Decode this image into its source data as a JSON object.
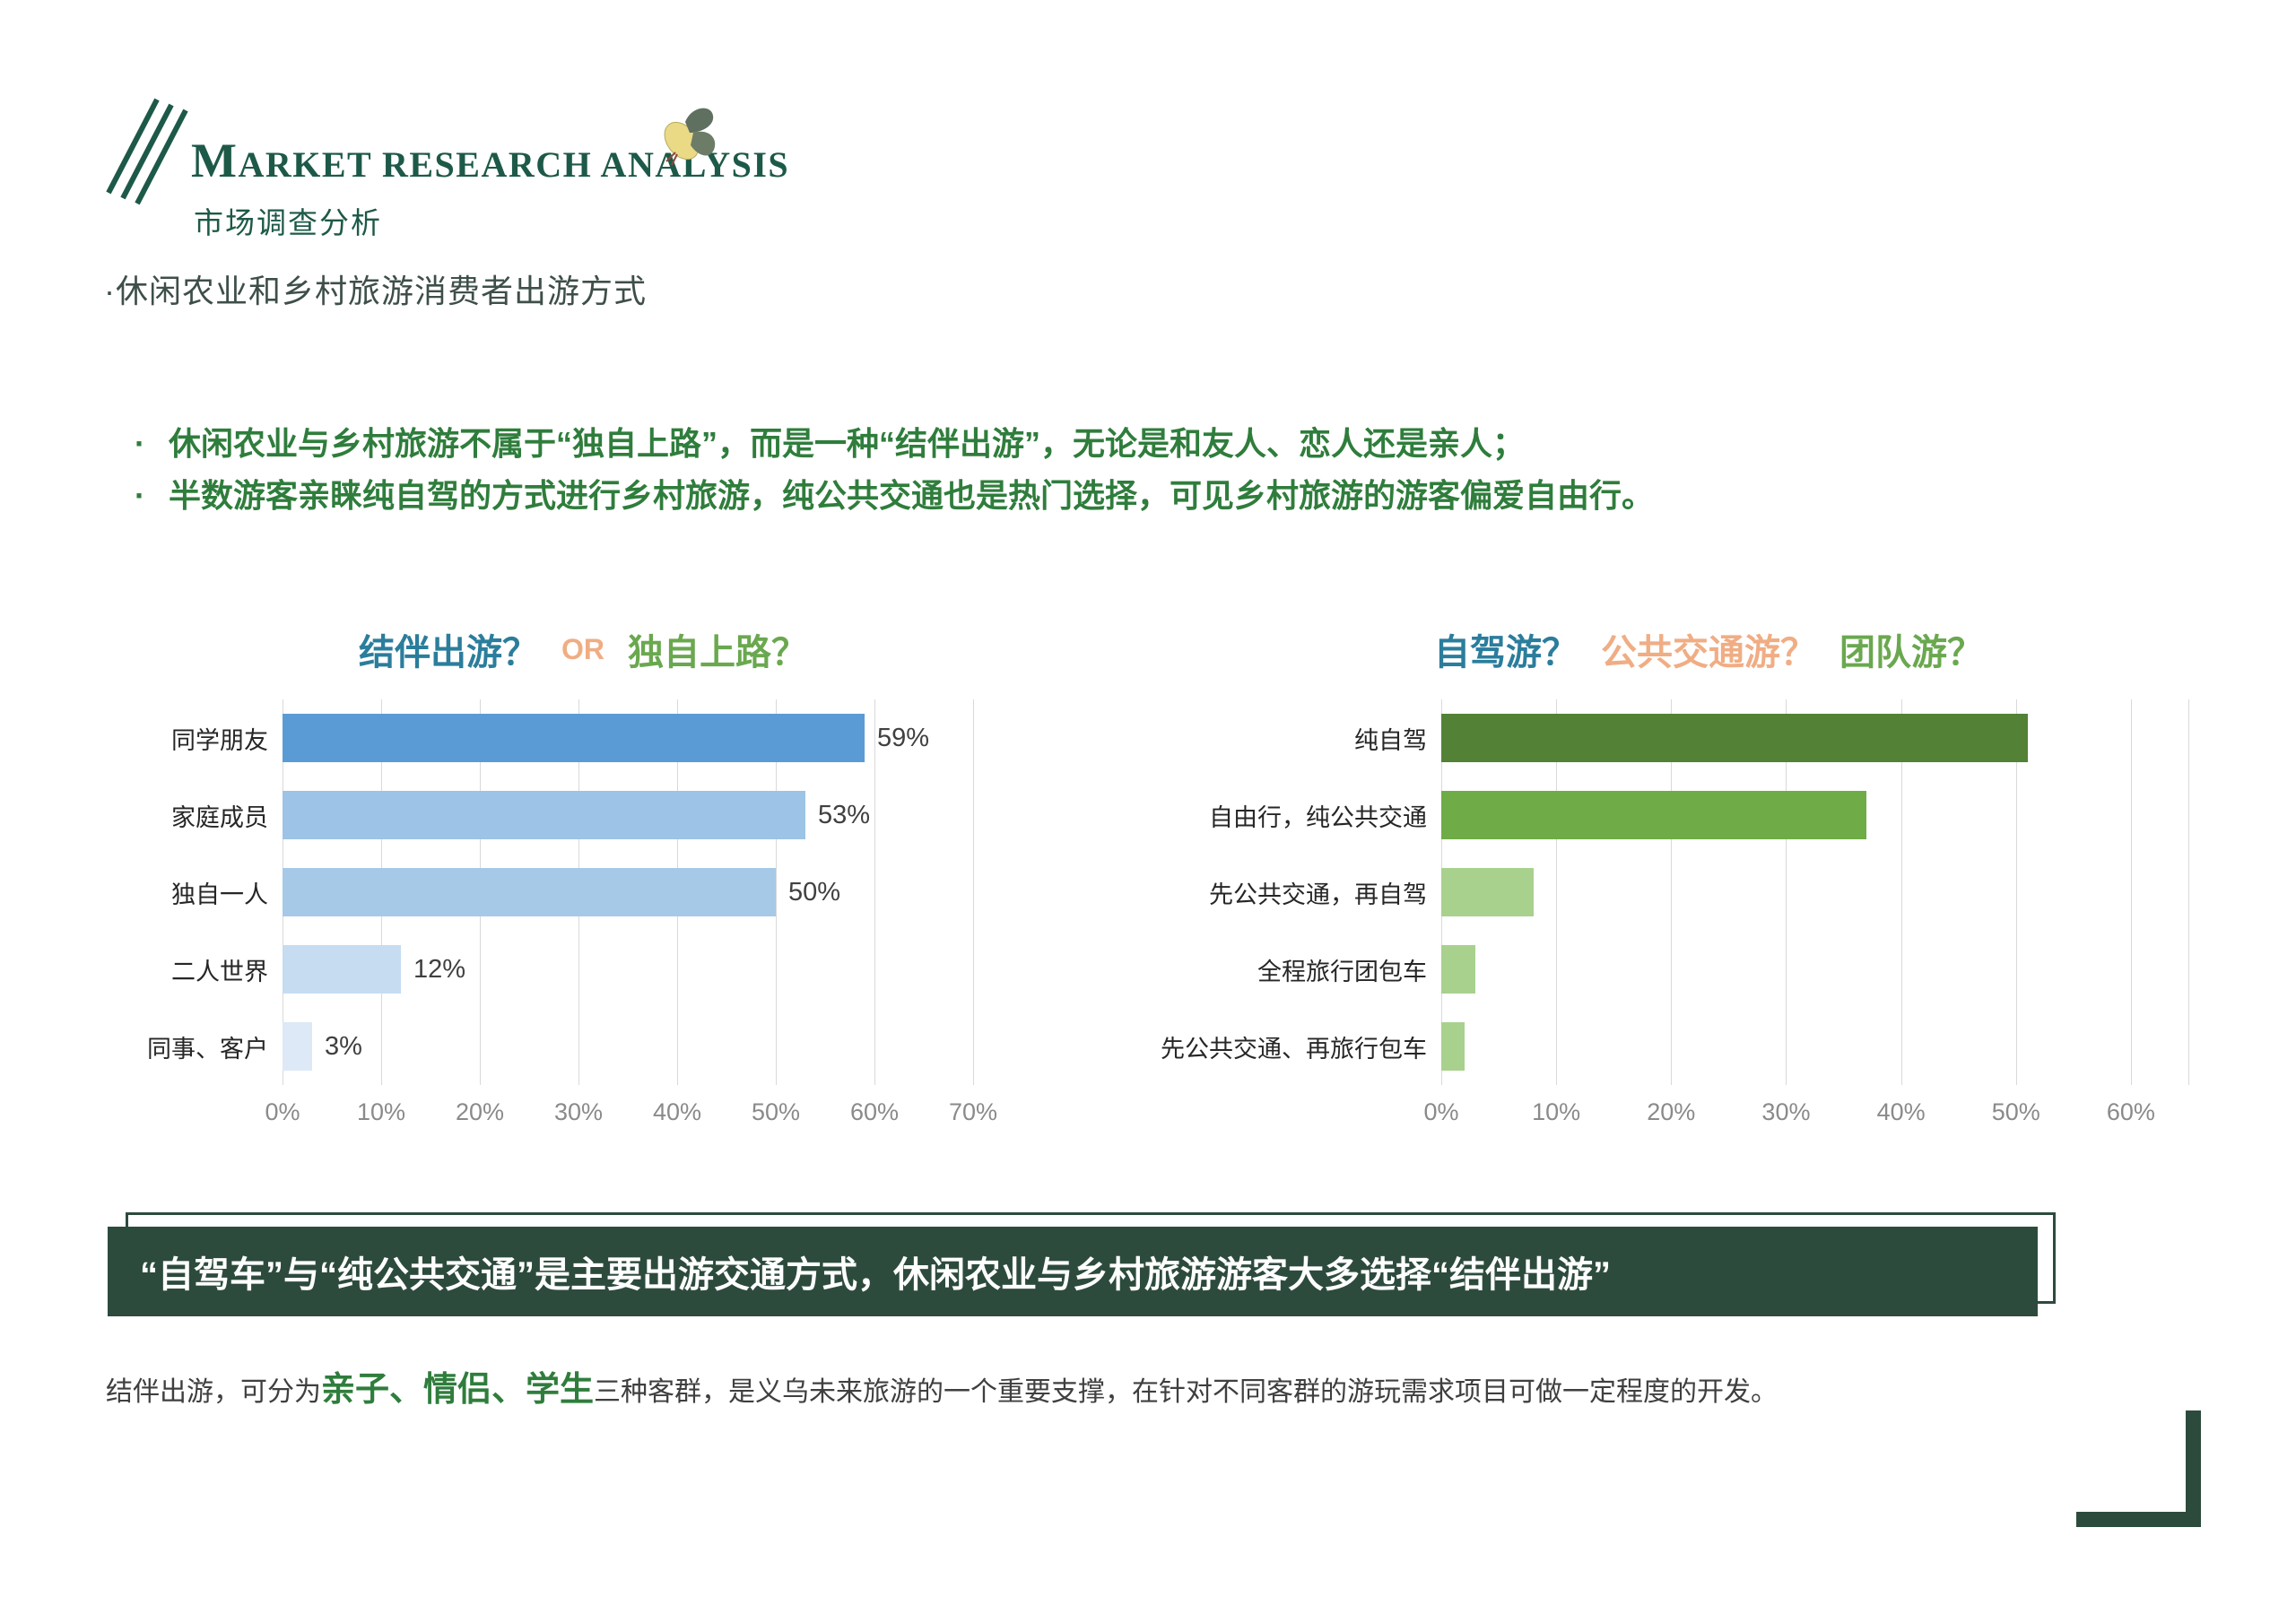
{
  "slide": {
    "background": "#ffffff",
    "accent_dark_green": "#1d5948",
    "banner_green": "#2d4b3d",
    "bullet_green": "#2f7d3c"
  },
  "header": {
    "logo_icon": "triple-diagonal-lines",
    "title_initial": "M",
    "title_rest": "ARKET RESEARCH ANALYSIS",
    "butterfly_icon": "butterfly",
    "subtitle": "市场调查分析"
  },
  "section": {
    "heading": "·休闲农业和乡村旅游消费者出游方式"
  },
  "bullets": {
    "marker": "·",
    "items": [
      "休闲农业与乡村旅游不属于“独自上路”，而是一种“结伴出游”，无论是和友人、恋人还是亲人；",
      "半数游客亲睐纯自驾的方式进行乡村旅游，纯公共交通也是热门选择，可见乡村旅游的游客偏爱自由行。"
    ]
  },
  "chart_data": [
    {
      "type": "bar",
      "orientation": "horizontal",
      "title_parts": [
        {
          "text": "结伴出游？",
          "color": "#2b7d9c",
          "small": false
        },
        {
          "text": "OR",
          "color": "#f0ad84",
          "small": true
        },
        {
          "text": "独自上路？",
          "color": "#6aa84f",
          "small": false
        }
      ],
      "categories": [
        "同学朋友",
        "家庭成员",
        "独自一人",
        "二人世界",
        "同事、客户"
      ],
      "values": [
        59,
        53,
        50,
        12,
        3
      ],
      "value_labels": [
        "59%",
        "53%",
        "50%",
        "12%",
        "3%"
      ],
      "show_value_labels": true,
      "bar_colors": [
        "#5b9bd5",
        "#9dc3e6",
        "#a6c9e8",
        "#c6dcf1",
        "#dde9f6"
      ],
      "xlim": [
        0,
        70
      ],
      "tick_values": [
        0,
        10,
        20,
        30,
        40,
        50,
        60,
        70
      ],
      "tick_labels": [
        "0%",
        "10%",
        "20%",
        "30%",
        "40%",
        "50%",
        "60%",
        "70%"
      ],
      "gridline_values": [
        0,
        10,
        20,
        30,
        40,
        50,
        60,
        70
      ],
      "grid": true,
      "legend": "none"
    },
    {
      "type": "bar",
      "orientation": "horizontal",
      "title_parts": [
        {
          "text": "自驾游？",
          "color": "#2b7d9c",
          "small": false
        },
        {
          "text": "公共交通游？",
          "color": "#f0ad84",
          "small": false
        },
        {
          "text": "团队游？",
          "color": "#6aa84f",
          "small": false
        }
      ],
      "categories": [
        "纯自驾",
        "自由行，纯公共交通",
        "先公共交通，再自驾",
        "全程旅行团包车",
        "先公共交通、再旅行包车"
      ],
      "values": [
        51,
        37,
        8,
        3,
        2
      ],
      "value_labels": [],
      "show_value_labels": false,
      "bar_colors": [
        "#538135",
        "#6fac47",
        "#a9d18e",
        "#a9d18e",
        "#a9d18e"
      ],
      "xlim": [
        0,
        65
      ],
      "tick_values": [
        0,
        10,
        20,
        30,
        40,
        50,
        60
      ],
      "tick_labels": [
        "0%",
        "10%",
        "20%",
        "30%",
        "40%",
        "50%",
        "60%"
      ],
      "gridline_values": [
        0,
        10,
        20,
        30,
        40,
        50,
        60,
        65
      ],
      "grid": true,
      "legend": "none"
    }
  ],
  "banner": {
    "text": "“自驾车”与“纯公共交通”是主要出游交通方式，休闲农业与乡村旅游游客大多选择“结伴出游”"
  },
  "footer": {
    "prefix": "结伴出游，可分为",
    "highlight": "亲子、情侣、学生",
    "suffix": "三种客群，是义乌未来旅游的一个重要支撑，在针对不同客群的游玩需求项目可做一定程度的开发。"
  },
  "decoration": {
    "corner_icon": "corner-bracket"
  }
}
